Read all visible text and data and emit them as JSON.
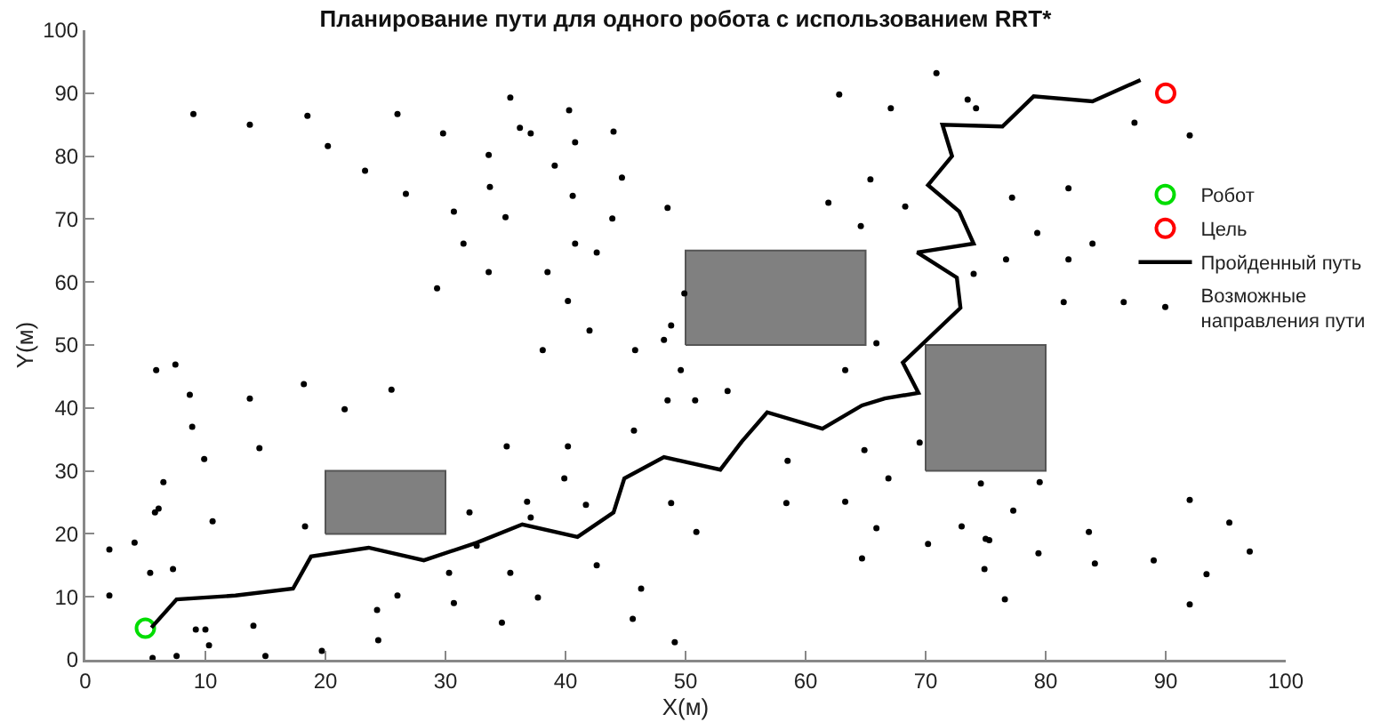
{
  "chart_data": {
    "type": "scatter",
    "title": "Планирование пути для одного робота с использованием RRT*",
    "xlabel": "X(м)",
    "ylabel": "Y(м)",
    "xlim": [
      0,
      100
    ],
    "ylim": [
      0,
      100
    ],
    "xticks": [
      0,
      10,
      20,
      30,
      40,
      50,
      60,
      70,
      80,
      90,
      100
    ],
    "yticks": [
      0,
      10,
      20,
      30,
      40,
      50,
      60,
      70,
      80,
      90,
      100
    ],
    "legend": "right",
    "series": [
      {
        "type": "area",
        "color": "#808080",
        "x": [
          20,
          30,
          30,
          20,
          20
        ],
        "values": [
          20,
          20,
          30,
          30,
          20
        ]
      },
      {
        "type": "area",
        "color": "#808080",
        "x": [
          50,
          65,
          65,
          50,
          50
        ],
        "values": [
          50,
          50,
          65,
          65,
          50
        ]
      },
      {
        "type": "area",
        "color": "#808080",
        "x": [
          70,
          80,
          80,
          70,
          70
        ],
        "values": [
          30,
          30,
          50,
          50,
          30
        ]
      },
      {
        "name": "Робот",
        "color": "#00dd00",
        "marker": "circle",
        "x": [
          5
        ],
        "values": [
          5
        ]
      },
      {
        "name": "Цель",
        "color": "#ff0000",
        "marker": "circle",
        "x": [
          90
        ],
        "values": [
          90
        ]
      },
      {
        "type": "line",
        "name": "Пройденный путь",
        "color": "#000000",
        "line_style": "solid",
        "x": [
          5.5,
          7.6,
          12.5,
          17.3,
          18.8,
          23.6,
          28.2,
          32.6,
          36.4,
          41,
          44,
          44.9,
          48.2,
          52.9,
          54.7,
          56.8,
          61.4,
          64.7,
          66.6,
          69.4,
          68.1,
          72.9,
          72.6,
          69.3,
          74,
          72.8,
          70.2,
          72.2,
          71.4,
          76.4,
          79,
          83.9,
          87.9
        ],
        "values": [
          5.1,
          9.6,
          10.2,
          11.3,
          16.4,
          17.8,
          15.8,
          18.6,
          21.5,
          19.5,
          23.4,
          28.8,
          32.2,
          30.2,
          34.7,
          39.3,
          36.7,
          40.4,
          41.5,
          42.4,
          47.2,
          55.9,
          60.7,
          64.7,
          66.1,
          71.2,
          75.4,
          80,
          85,
          84.7,
          89.5,
          88.7,
          92.1
        ]
      },
      {
        "name": "Возможные направления пути",
        "color": "#000000",
        "marker": "circle",
        "x": [
          9,
          13.7,
          18.5,
          20.2,
          23.3,
          26,
          26.7,
          29.8,
          30.7,
          31.5,
          29.3,
          35.4,
          40.3,
          36.2,
          37.1,
          44,
          40.8,
          33.6,
          39.1,
          44.7,
          33.7,
          40.6,
          48.5,
          35,
          43.9,
          40.8,
          42.6,
          33.6,
          38.5,
          40.2,
          49.9,
          42,
          48.8,
          48.2,
          38.1,
          45.8,
          62.8,
          65.4,
          61.9,
          64.6,
          65.9,
          70.9,
          67.1,
          73.5,
          74.2,
          87.4,
          92,
          68.3,
          77.2,
          81.9,
          79.3,
          83.9,
          76.7,
          81.9,
          74,
          81.5,
          86.5,
          5.9,
          7.5,
          8.7,
          13.7,
          18.2,
          25.5,
          21.6,
          8.9,
          14.5,
          9.9,
          6.5,
          5.8,
          6.1,
          10.6,
          18.3,
          32,
          2,
          4.1,
          5.4,
          7.3,
          2,
          30.3,
          26,
          30.7,
          24.3,
          14,
          9.2,
          10,
          10.3,
          24.4,
          19.7,
          5.6,
          7.6,
          15,
          49.6,
          48.5,
          50.8,
          53.5,
          63.3,
          45.7,
          35.1,
          40.2,
          39.9,
          36.8,
          37.1,
          41.7,
          48.8,
          58.5,
          64.9,
          58.4,
          63.3,
          50.9,
          32.6,
          35.4,
          42.6,
          64.7,
          37.7,
          46.3,
          34.7,
          45.6,
          49.1,
          69.5,
          66.9,
          74.6,
          79.5,
          77.3,
          65.9,
          70.2,
          73,
          75,
          75.3,
          74.9,
          76.6,
          79.4,
          83.6,
          84.1,
          89,
          92,
          95.3,
          97,
          93.4,
          92
        ],
        "values": [
          86.7,
          85,
          86.4,
          81.6,
          77.7,
          86.7,
          74,
          83.6,
          71.2,
          66.1,
          59,
          89.3,
          87.3,
          84.5,
          83.6,
          83.9,
          82.2,
          80.2,
          78.5,
          76.6,
          75.1,
          73.7,
          71.8,
          70.3,
          70.1,
          66.1,
          64.7,
          61.6,
          61.6,
          57,
          58.2,
          52.3,
          53.1,
          50.8,
          49.2,
          49.2,
          89.8,
          76.3,
          72.6,
          68.9,
          50.3,
          93.2,
          87.6,
          89,
          87.6,
          85.3,
          83.3,
          72,
          73.4,
          74.9,
          67.8,
          66.1,
          63.6,
          63.6,
          61.3,
          56.8,
          56.8,
          46,
          46.9,
          42.1,
          41.5,
          43.8,
          42.9,
          39.8,
          37,
          33.6,
          31.9,
          28.2,
          23.4,
          24,
          22,
          21.2,
          23.4,
          17.5,
          18.6,
          13.8,
          14.4,
          10.2,
          13.8,
          10.2,
          9,
          7.9,
          5.4,
          4.8,
          4.8,
          2.3,
          3.1,
          1.4,
          0.3,
          0.6,
          0.6,
          46,
          41.2,
          41.2,
          42.7,
          46,
          36.4,
          33.9,
          33.9,
          28.8,
          25.1,
          22.6,
          24.6,
          24.9,
          31.6,
          33.3,
          24.9,
          25.1,
          20.3,
          18.1,
          13.8,
          15,
          16.1,
          9.9,
          11.3,
          5.9,
          6.5,
          2.8,
          34.5,
          28.8,
          28,
          28.2,
          23.7,
          20.9,
          18.4,
          21.2,
          19.2,
          19,
          14.4,
          9.6,
          16.9,
          20.3,
          15.3,
          15.8,
          25.4,
          21.8,
          17.2,
          13.6,
          8.8
        ]
      }
    ]
  }
}
